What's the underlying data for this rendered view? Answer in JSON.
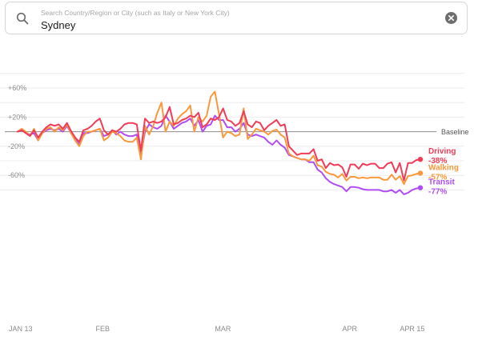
{
  "search": {
    "placeholder": "Search Country/Region or City (such as Italy or New York City)",
    "value": "Sydney"
  },
  "icons": {
    "search": "search-icon",
    "clear": "clear-icon"
  },
  "chart_data": {
    "type": "line",
    "title": "",
    "xlabel": "",
    "ylabel": "",
    "ylim": [
      -90,
      70
    ],
    "yticks": [
      {
        "value": 60,
        "label": "+60%"
      },
      {
        "value": 20,
        "label": "+20%"
      },
      {
        "value": -20,
        "label": "-20%"
      },
      {
        "value": -60,
        "label": "-60%"
      }
    ],
    "xticks": [
      {
        "index": 0,
        "label": "JAN 13"
      },
      {
        "index": 19,
        "label": "FEB"
      },
      {
        "index": 48,
        "label": "MAR"
      },
      {
        "index": 79,
        "label": "APR"
      },
      {
        "index": 93,
        "label": "APR 15"
      }
    ],
    "baseline": {
      "value": 0,
      "label": "Baseline"
    },
    "grid": true,
    "legend": "right-end-labels",
    "series": [
      {
        "name": "Driving",
        "end_label": "-38%",
        "color": "#f23c57",
        "values": [
          0,
          2,
          -2,
          -6,
          2,
          -8,
          0,
          6,
          10,
          8,
          10,
          4,
          12,
          1,
          -8,
          -14,
          2,
          4,
          8,
          14,
          18,
          2,
          -4,
          2,
          0,
          4,
          10,
          12,
          12,
          10,
          -26,
          18,
          12,
          14,
          12,
          14,
          20,
          34,
          10,
          12,
          16,
          18,
          22,
          20,
          26,
          6,
          10,
          18,
          16,
          20,
          32,
          16,
          14,
          8,
          12,
          28,
          10,
          6,
          14,
          12,
          2,
          8,
          12,
          16,
          8,
          10,
          -20,
          -26,
          -32,
          -30,
          -30,
          -30,
          -24,
          -40,
          -38,
          -50,
          -43,
          -46,
          -45,
          -49,
          -62,
          -45,
          -45,
          -51,
          -44,
          -46,
          -44,
          -44,
          -50,
          -50,
          -44,
          -42,
          -56,
          -43,
          -67,
          -43,
          -43,
          -39,
          -38
        ]
      },
      {
        "name": "Walking",
        "end_label": "-57%",
        "color": "#f9993c",
        "values": [
          0,
          4,
          0,
          -6,
          4,
          -12,
          -2,
          4,
          6,
          0,
          6,
          2,
          10,
          -2,
          -12,
          -20,
          -6,
          0,
          0,
          2,
          4,
          -12,
          -8,
          0,
          -2,
          -6,
          -12,
          -14,
          -14,
          -8,
          -38,
          8,
          -4,
          8,
          26,
          40,
          0,
          14,
          8,
          18,
          24,
          28,
          36,
          0,
          20,
          14,
          22,
          48,
          55,
          24,
          -8,
          0,
          -2,
          -6,
          -4,
          32,
          -10,
          -4,
          4,
          2,
          0,
          -4,
          1,
          3,
          -4,
          -8,
          -30,
          -34,
          -36,
          -38,
          -38,
          -40,
          -33,
          -46,
          -48,
          -55,
          -58,
          -59,
          -63,
          -58,
          -67,
          -62,
          -62,
          -64,
          -63,
          -64,
          -63,
          -63,
          -63,
          -66,
          -66,
          -59,
          -66,
          -61,
          -72,
          -61,
          -60,
          -58,
          -57
        ]
      },
      {
        "name": "Transit",
        "end_label": "-77%",
        "color": "#b04cf5",
        "values": [
          0,
          2,
          -2,
          -4,
          -2,
          -12,
          -2,
          2,
          4,
          2,
          4,
          0,
          8,
          -2,
          -10,
          -18,
          -2,
          -2,
          0,
          2,
          4,
          -6,
          -4,
          2,
          -4,
          0,
          -4,
          -6,
          -6,
          -4,
          -32,
          0,
          10,
          6,
          4,
          8,
          22,
          14,
          4,
          8,
          12,
          14,
          18,
          8,
          16,
          0,
          8,
          10,
          22,
          16,
          16,
          6,
          6,
          0,
          4,
          12,
          -4,
          -6,
          -4,
          -6,
          -8,
          -14,
          -18,
          -12,
          -18,
          -22,
          -32,
          -34,
          -36,
          -38,
          -38,
          -42,
          -42,
          -52,
          -56,
          -64,
          -69,
          -72,
          -74,
          -76,
          -82,
          -76,
          -76,
          -77,
          -79,
          -80,
          -80,
          -80,
          -80,
          -82,
          -82,
          -80,
          -84,
          -80,
          -86,
          -84,
          -80,
          -78,
          -77
        ]
      }
    ]
  }
}
